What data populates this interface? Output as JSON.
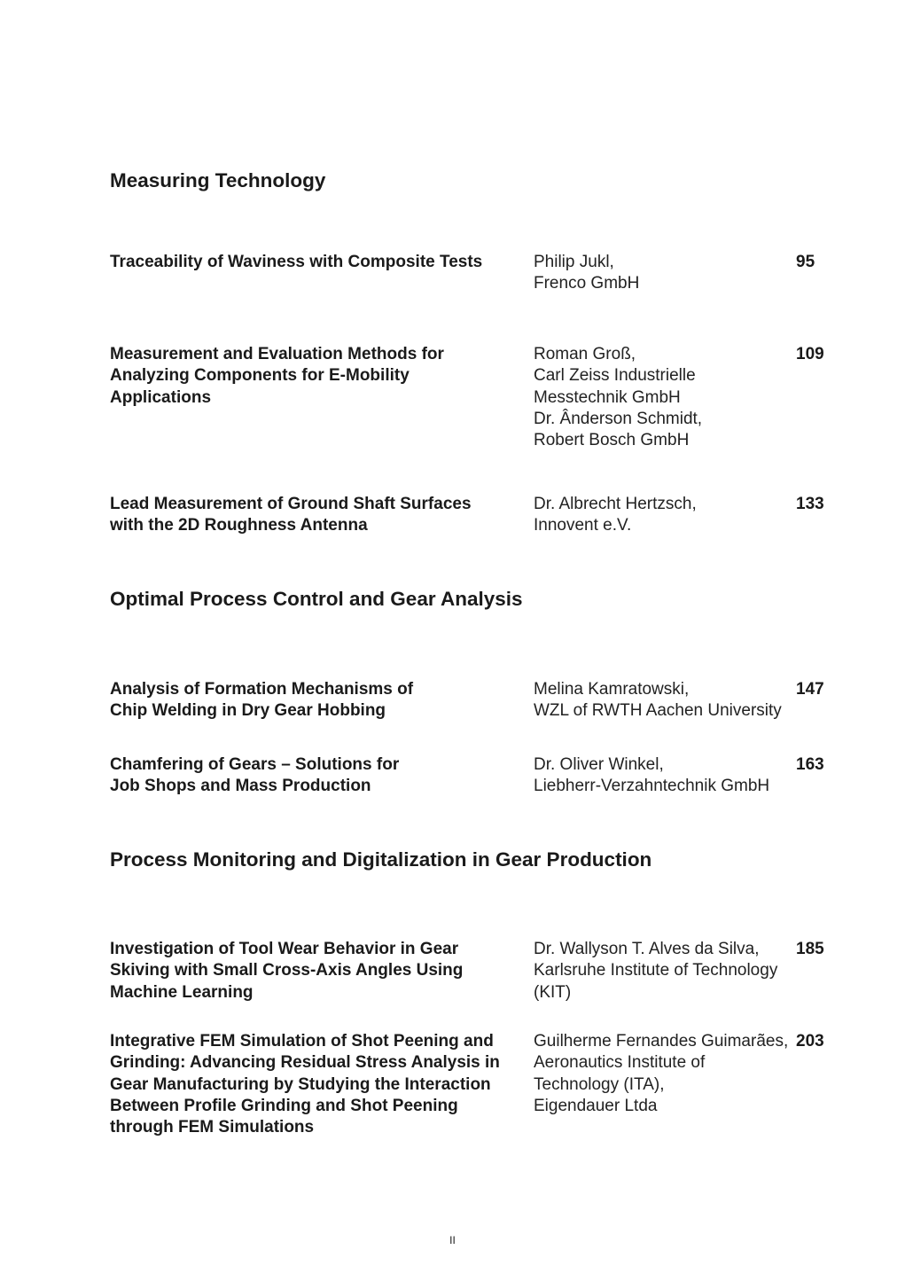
{
  "sections": [
    {
      "heading": "Measuring Technology",
      "entries": [
        {
          "title": [
            "Traceability of Waviness with Composite Tests"
          ],
          "authors": [
            "Philip Jukl,",
            "Frenco GmbH"
          ],
          "page": "95"
        },
        {
          "title": [
            "Measurement and Evaluation Methods for",
            "Analyzing Components for E-Mobility",
            "Applications"
          ],
          "authors": [
            "Roman Groß,",
            "Carl Zeiss Industrielle",
            "Messtechnik GmbH",
            "Dr. Ânderson Schmidt,",
            "Robert Bosch GmbH"
          ],
          "page": "109"
        },
        {
          "title": [
            "Lead Measurement of Ground Shaft Surfaces",
            "with the 2D Roughness Antenna"
          ],
          "authors": [
            "Dr. Albrecht Hertzsch,",
            "Innovent e.V."
          ],
          "page": "133"
        }
      ]
    },
    {
      "heading": "Optimal Process Control and Gear Analysis",
      "entries": [
        {
          "title": [
            "Analysis of Formation Mechanisms of",
            "Chip Welding in Dry Gear Hobbing"
          ],
          "authors": [
            "Melina Kamratowski,",
            "WZL of RWTH Aachen University"
          ],
          "page": "147"
        },
        {
          "title": [
            "Chamfering of Gears – Solutions for",
            "Job Shops and Mass Production"
          ],
          "authors": [
            "Dr. Oliver Winkel,",
            "Liebherr-Verzahntechnik GmbH"
          ],
          "page": "163"
        }
      ]
    },
    {
      "heading": "Process Monitoring and Digitalization in Gear Production",
      "entries": [
        {
          "title": [
            "Investigation of Tool Wear Behavior in Gear",
            "Skiving with Small Cross-Axis Angles Using",
            "Machine Learning"
          ],
          "authors": [
            "Dr. Wallyson T. Alves da Silva,",
            "Karlsruhe Institute of Technology",
            "(KIT)"
          ],
          "page": "185"
        },
        {
          "title": [
            "Integrative FEM Simulation of Shot Peening and",
            "Grinding: Advancing Residual Stress Analysis in",
            "Gear Manufacturing by Studying the Interaction",
            "Between Profile Grinding and Shot Peening",
            "through FEM Simulations"
          ],
          "authors": [
            "Guilherme Fernandes Guimarães,",
            "Aeronautics Institute of",
            "Technology (ITA),",
            "Eigendauer Ltda"
          ],
          "page": "203"
        }
      ]
    }
  ],
  "footer": {
    "page_number": "II"
  }
}
